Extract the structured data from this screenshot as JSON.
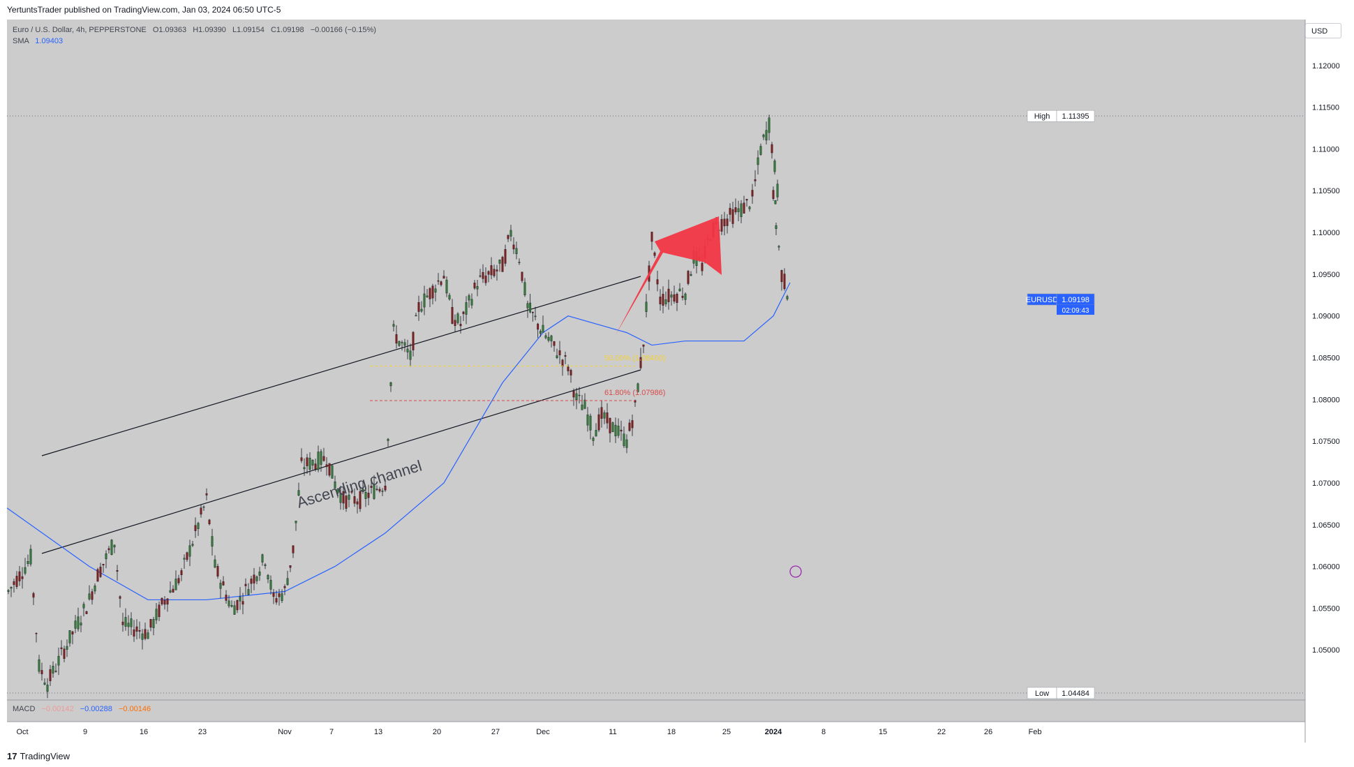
{
  "header": {
    "publish_text": "YertuntsTrader published on TradingView.com, Jan 03, 2024 06:50 UTC-5"
  },
  "legend": {
    "symbol_text": "Euro / U.S. Dollar, 4h, PEPPERSTONE",
    "open": "O1.09363",
    "high": "H1.09390",
    "low": "L1.09154",
    "close": "C1.09198",
    "change": "−0.00166 (−0.15%)",
    "sma_label": "SMA",
    "sma_value": "1.09403"
  },
  "macd": {
    "label": "MACD",
    "values": [
      "−0.00142",
      "−0.00288",
      "−0.00146"
    ],
    "colors": [
      "#ef9a9a",
      "#2962ff",
      "#ff6d00"
    ]
  },
  "currency_button": "USD",
  "footer": {
    "logo": "TradingView"
  },
  "colors": {
    "background": "#cccccc",
    "up_candle": "#2e7d32",
    "down_candle": "#8b1a1a",
    "sma": "#2962ff",
    "arrow": "#f23645",
    "fib50": "#f2d13a",
    "fib618": "#d94a4a",
    "price_tag": "#2962ff"
  },
  "chart_data": {
    "type": "candlestick",
    "symbol": "EURUSD",
    "timeframe": "4h",
    "y_axis_ticks": [
      "1.12000",
      "1.11500",
      "1.11000",
      "1.10500",
      "1.10000",
      "1.09500",
      "1.09000",
      "1.08500",
      "1.08000",
      "1.07500",
      "1.07000",
      "1.06500",
      "1.06000",
      "1.05500",
      "1.05000"
    ],
    "ylim": [
      1.044,
      1.1255
    ],
    "x_axis_ticks": [
      "Oct",
      "9",
      "16",
      "23",
      "Nov",
      "7",
      "13",
      "20",
      "27",
      "Dec",
      "11",
      "18",
      "25",
      "2024",
      "8",
      "15",
      "22",
      "26",
      "Feb"
    ],
    "high_marker": {
      "label": "High",
      "value": "1.11395"
    },
    "low_marker": {
      "label": "Low",
      "value": "1.04484"
    },
    "last_price": {
      "symbol": "EURUSD",
      "value": "1.09198",
      "countdown": "02:09:43"
    },
    "fib_levels": [
      {
        "label": "50.00% (1.08400)",
        "value": 1.084
      },
      {
        "label": "61.80% (1.07986)",
        "value": 1.07986
      }
    ],
    "annotation": "Ascending channel",
    "price_path": [
      [
        "Oct",
        1.057
      ],
      [
        "Oct 2",
        1.061
      ],
      [
        "Oct 3",
        1.048
      ],
      [
        "Oct 4",
        1.046
      ],
      [
        "Oct 6",
        1.05
      ],
      [
        "Oct 9",
        1.056
      ],
      [
        "Oct 10",
        1.059
      ],
      [
        "Oct 12",
        1.063
      ],
      [
        "Oct 13",
        1.053
      ],
      [
        "Oct 16",
        1.052
      ],
      [
        "Oct 18",
        1.056
      ],
      [
        "Oct 20",
        1.059
      ],
      [
        "Oct 23",
        1.068
      ],
      [
        "Oct 24",
        1.06
      ],
      [
        "Oct 26",
        1.055
      ],
      [
        "Oct 27",
        1.056
      ],
      [
        "Oct 30",
        1.061
      ],
      [
        "Oct 31",
        1.056
      ],
      [
        "Nov",
        1.057
      ],
      [
        "Nov 2",
        1.062
      ],
      [
        "Nov 3",
        1.072
      ],
      [
        "Nov 6",
        1.073
      ],
      [
        "Nov 7",
        1.07
      ],
      [
        "Nov 8",
        1.068
      ],
      [
        "Nov 10",
        1.068
      ],
      [
        "Nov 13",
        1.07
      ],
      [
        "Nov 14",
        1.088
      ],
      [
        "Nov 16",
        1.085
      ],
      [
        "Nov 17",
        1.091
      ],
      [
        "Nov 20",
        1.095
      ],
      [
        "Nov 21",
        1.09
      ],
      [
        "Nov 22",
        1.089
      ],
      [
        "Nov 24",
        1.094
      ],
      [
        "Nov 27",
        1.096
      ],
      [
        "Nov 28",
        1.1
      ],
      [
        "Nov 29",
        1.097
      ],
      [
        "Nov 30",
        1.091
      ],
      [
        "Dec",
        1.088
      ],
      [
        "Dec 4",
        1.084
      ],
      [
        "Dec 5",
        1.08
      ],
      [
        "Dec 6",
        1.079
      ],
      [
        "Dec 7",
        1.076
      ],
      [
        "Dec 8",
        1.078
      ],
      [
        "Dec 11",
        1.075
      ],
      [
        "Dec 12",
        1.079
      ],
      [
        "Dec 13",
        1.087
      ],
      [
        "Dec 14",
        1.099
      ],
      [
        "Dec 15",
        1.092
      ],
      [
        "Dec 18",
        1.093
      ],
      [
        "Dec 19",
        1.097
      ],
      [
        "Dec 20",
        1.096
      ],
      [
        "Dec 21",
        1.1
      ],
      [
        "Dec 22",
        1.101
      ],
      [
        "Dec 25",
        1.103
      ],
      [
        "Dec 26",
        1.104
      ],
      [
        "Dec 27",
        1.11
      ],
      [
        "Dec 28",
        1.113
      ],
      [
        "Dec 29",
        1.105
      ],
      [
        "2024",
        1.104
      ],
      [
        "Jan 2",
        1.095
      ],
      [
        "Jan 3",
        1.092
      ]
    ],
    "sma_path": [
      [
        "Oct",
        1.067
      ],
      [
        "Oct 9",
        1.06
      ],
      [
        "Oct 16",
        1.056
      ],
      [
        "Oct 23",
        1.056
      ],
      [
        "Nov",
        1.057
      ],
      [
        "Nov 7",
        1.06
      ],
      [
        "Nov 13",
        1.064
      ],
      [
        "Nov 20",
        1.07
      ],
      [
        "Nov 27",
        1.082
      ],
      [
        "Dec",
        1.088
      ],
      [
        "Dec 4",
        1.09
      ],
      [
        "Dec 11",
        1.088
      ],
      [
        "Dec 14",
        1.0865
      ],
      [
        "Dec 18",
        1.087
      ],
      [
        "Dec 25",
        1.087
      ],
      [
        "2024",
        1.09
      ],
      [
        "Jan 3",
        1.094
      ]
    ]
  }
}
